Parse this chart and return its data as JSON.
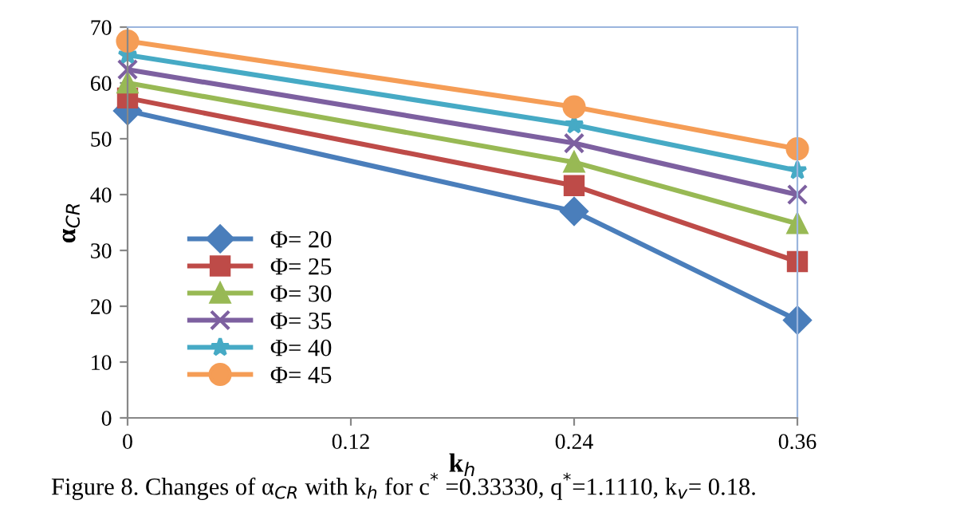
{
  "chart_data": {
    "type": "line",
    "xlabel": "k$_{h}$",
    "ylabel": "α$_{CR}$",
    "x": [
      0,
      0.24,
      0.36
    ],
    "xlim": [
      0,
      0.36
    ],
    "xticks": [
      0,
      0.12,
      0.24,
      0.36
    ],
    "ylim": [
      0,
      70
    ],
    "yticks": [
      0,
      10,
      20,
      30,
      40,
      50,
      60,
      70
    ],
    "grid": false,
    "legend": "bottom left",
    "line_style": "solid",
    "series": [
      {
        "name": "Φ= 20",
        "color": "#4a7ebb",
        "marker": "diamond",
        "values": [
          55,
          37,
          17.5
        ]
      },
      {
        "name": "Φ= 25",
        "color": "#be4b48",
        "marker": "square",
        "values": [
          57.3,
          41.6,
          28
        ]
      },
      {
        "name": "Φ= 30",
        "color": "#98b954",
        "marker": "triangle",
        "values": [
          60,
          45.8,
          34.8
        ]
      },
      {
        "name": "Φ= 35",
        "color": "#7d60a0",
        "marker": "cross",
        "values": [
          62.4,
          49.2,
          40
        ]
      },
      {
        "name": "Φ= 40",
        "color": "#46aac5",
        "marker": "star",
        "values": [
          65,
          52.5,
          44.3
        ]
      },
      {
        "name": "Φ= 45",
        "color": "#f59d56",
        "marker": "circle",
        "values": [
          67.5,
          55.7,
          48.2
        ]
      }
    ],
    "annotations": [
      "Figure 8. Changes of α$_{CR}$ with k$_{h}$ for c$^{*}$ =0.33330, q$^{*}$=1.1110, k$_{v}$= 0.18."
    ]
  }
}
